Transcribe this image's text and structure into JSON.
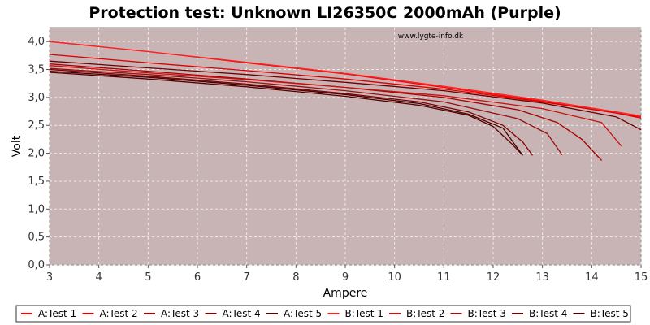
{
  "chart_data": {
    "type": "line",
    "title": "Protection test: Unknown LI26350C 2000mAh (Purple)",
    "xlabel": "Ampere",
    "ylabel": "Volt",
    "watermark": "www.lygte-info.dk",
    "xlim": [
      3,
      15
    ],
    "ylim": [
      0,
      4.25
    ],
    "xticks": [
      3,
      4,
      5,
      6,
      7,
      8,
      9,
      10,
      11,
      12,
      13,
      14,
      15
    ],
    "yticks": [
      0,
      0.5,
      1.0,
      1.5,
      2.0,
      2.5,
      3.0,
      3.5,
      4.0
    ],
    "ytick_labels": [
      "0,0",
      "0,5",
      "1,0",
      "1,5",
      "2,0",
      "2,5",
      "3,0",
      "3,5",
      "4,0"
    ],
    "grid": true,
    "legend_position": "bottom",
    "plot_background": "#c8b4b4",
    "series": [
      {
        "name": "A:Test 1",
        "color": "#ff0000",
        "x": [
          3,
          5,
          7,
          9,
          11,
          13,
          15
        ],
        "y": [
          4.0,
          3.82,
          3.62,
          3.42,
          3.18,
          2.93,
          2.65
        ]
      },
      {
        "name": "A:Test 2",
        "color": "#dd0000",
        "x": [
          3,
          5,
          7,
          9,
          11,
          13,
          14.5,
          15
        ],
        "y": [
          3.77,
          3.62,
          3.48,
          3.33,
          3.15,
          2.92,
          2.72,
          2.63
        ]
      },
      {
        "name": "A:Test 3",
        "color": "#aa0000",
        "x": [
          3,
          5,
          7,
          9,
          11,
          12.5,
          13.3,
          13.8,
          14.2
        ],
        "y": [
          3.6,
          3.47,
          3.33,
          3.18,
          3.0,
          2.78,
          2.55,
          2.25,
          1.87
        ]
      },
      {
        "name": "A:Test 4",
        "color": "#800000",
        "x": [
          3,
          5,
          7,
          9,
          10.5,
          11.5,
          12.2,
          12.6,
          12.8
        ],
        "y": [
          3.5,
          3.38,
          3.24,
          3.07,
          2.92,
          2.74,
          2.5,
          2.2,
          1.96
        ]
      },
      {
        "name": "A:Test 5",
        "color": "#550000",
        "x": [
          3,
          5,
          7,
          9,
          10.5,
          11.5,
          12.0,
          12.4,
          12.6
        ],
        "y": [
          3.45,
          3.33,
          3.19,
          3.02,
          2.86,
          2.68,
          2.48,
          2.15,
          1.96
        ]
      },
      {
        "name": "B:Test 1",
        "color": "#ff2020",
        "x": [
          3,
          5,
          7,
          9,
          11,
          13,
          15
        ],
        "y": [
          4.0,
          3.82,
          3.63,
          3.43,
          3.2,
          2.95,
          2.67
        ]
      },
      {
        "name": "B:Test 2",
        "color": "#cc1010",
        "x": [
          3,
          5,
          7,
          9,
          11,
          13,
          14.2,
          14.6
        ],
        "y": [
          3.57,
          3.44,
          3.32,
          3.18,
          3.03,
          2.8,
          2.55,
          2.13
        ]
      },
      {
        "name": "B:Test 3",
        "color": "#991010",
        "x": [
          3,
          5,
          7,
          9,
          11,
          12.5,
          13.1,
          13.4
        ],
        "y": [
          3.52,
          3.41,
          3.28,
          3.12,
          2.92,
          2.62,
          2.35,
          1.97
        ]
      },
      {
        "name": "B:Test 4",
        "color": "#700000",
        "x": [
          3,
          5,
          7,
          9,
          11,
          13,
          14.5,
          15
        ],
        "y": [
          3.65,
          3.53,
          3.41,
          3.27,
          3.12,
          2.9,
          2.65,
          2.42
        ]
      },
      {
        "name": "B:Test 5",
        "color": "#440000",
        "x": [
          3,
          5,
          7,
          9,
          10.5,
          11.5,
          12.2,
          12.6
        ],
        "y": [
          3.47,
          3.36,
          3.22,
          3.05,
          2.89,
          2.7,
          2.45,
          1.96
        ]
      }
    ]
  }
}
